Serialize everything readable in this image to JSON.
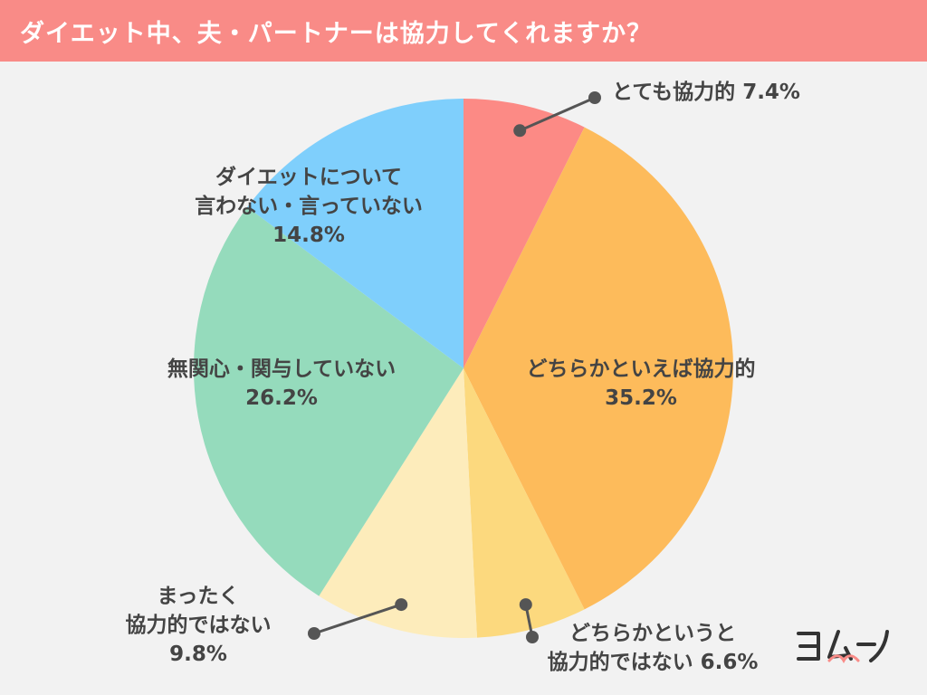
{
  "header": {
    "title": "ダイエット中、夫・パートナーは協力してくれますか？"
  },
  "logo": {
    "text": "ヨムーノ"
  },
  "chart_data": {
    "type": "pie",
    "title": "ダイエット中、夫・パートナーは協力してくれますか？",
    "unit": "%",
    "slices": [
      {
        "label": "とても協力的",
        "value": 7.4,
        "color": "#fc8a85"
      },
      {
        "label": "どちらかといえば協力的",
        "value": 35.2,
        "color": "#fdbb5b"
      },
      {
        "label": "どちらかというと協力的ではない",
        "value": 6.6,
        "color": "#fcd97e"
      },
      {
        "label": "まったく協力的ではない",
        "value": 9.8,
        "color": "#fdecbb"
      },
      {
        "label": "無関心・関与していない",
        "value": 26.2,
        "color": "#95dbbc"
      },
      {
        "label": "ダイエットについて言わない・言っていない",
        "value": 14.8,
        "color": "#7fcffc"
      }
    ]
  },
  "labels": {
    "s0": {
      "line1": "とても協力的",
      "pct": "7.4%"
    },
    "s1": {
      "line1": "どちらかといえば協力的",
      "pct": "35.2%"
    },
    "s2": {
      "line1": "どちらかというと",
      "line2": "協力的ではない",
      "pct": "6.6%"
    },
    "s3": {
      "line1": "まったく",
      "line2": "協力的ではない",
      "pct": "9.8%"
    },
    "s4": {
      "line1": "無関心・関与していない",
      "pct": "26.2%"
    },
    "s5": {
      "line1": "ダイエットについて",
      "line2": "言わない・言っていない",
      "pct": "14.8%"
    }
  }
}
